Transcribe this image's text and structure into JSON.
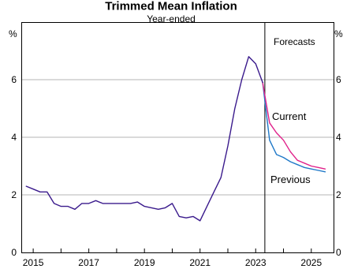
{
  "chart_data": {
    "type": "line",
    "title": "Trimmed Mean Inflation",
    "subtitle": "Year-ended",
    "y_unit_left": "%",
    "y_unit_right": "%",
    "x_range": [
      2014.6,
      2025.8
    ],
    "ylim": [
      0,
      8
    ],
    "y_ticks": [
      0,
      2,
      4,
      6
    ],
    "x_ticks": [
      {
        "value": 2015,
        "label": "2015"
      },
      {
        "value": 2017,
        "label": "2017"
      },
      {
        "value": 2019,
        "label": "2019"
      },
      {
        "value": 2021,
        "label": "2021"
      },
      {
        "value": 2023,
        "label": "2023"
      },
      {
        "value": 2025,
        "label": "2025"
      }
    ],
    "grid": true,
    "forecast_start": 2023.33,
    "annotations": {
      "forecasts": "Forecasts",
      "current": "Current",
      "previous": "Previous"
    },
    "colors": {
      "history": "#3a1a8c",
      "current": "#e0218a",
      "previous": "#1f78c8",
      "grid": "#b4b4b4"
    },
    "series": [
      {
        "name": "",
        "role": "history",
        "x": [
          2014.75,
          2015.0,
          2015.25,
          2015.5,
          2015.75,
          2016.0,
          2016.25,
          2016.5,
          2016.75,
          2017.0,
          2017.25,
          2017.5,
          2017.75,
          2018.0,
          2018.25,
          2018.5,
          2018.75,
          2019.0,
          2019.25,
          2019.5,
          2019.75,
          2020.0,
          2020.25,
          2020.5,
          2020.75,
          2021.0,
          2021.25,
          2021.5,
          2021.75,
          2022.0,
          2022.25,
          2022.5,
          2022.75,
          2023.0,
          2023.25
        ],
        "values": [
          2.3,
          2.2,
          2.1,
          2.1,
          1.7,
          1.6,
          1.6,
          1.5,
          1.7,
          1.7,
          1.8,
          1.7,
          1.7,
          1.7,
          1.7,
          1.7,
          1.75,
          1.6,
          1.55,
          1.5,
          1.55,
          1.7,
          1.25,
          1.2,
          1.25,
          1.1,
          1.6,
          2.1,
          2.6,
          3.7,
          5.0,
          6.0,
          6.8,
          6.55,
          5.9
        ]
      },
      {
        "name": "Current",
        "role": "current",
        "x": [
          2023.25,
          2023.5,
          2023.75,
          2024.0,
          2024.25,
          2024.5,
          2024.75,
          2025.0,
          2025.25,
          2025.5
        ],
        "values": [
          5.9,
          4.5,
          4.15,
          3.9,
          3.5,
          3.2,
          3.1,
          3.0,
          2.95,
          2.9
        ]
      },
      {
        "name": "Previous",
        "role": "previous",
        "x": [
          2023.25,
          2023.5,
          2023.75,
          2024.0,
          2024.25,
          2024.5,
          2024.75,
          2025.0,
          2025.25,
          2025.5
        ],
        "values": [
          5.9,
          3.9,
          3.4,
          3.3,
          3.15,
          3.05,
          2.95,
          2.9,
          2.85,
          2.8
        ]
      }
    ]
  }
}
